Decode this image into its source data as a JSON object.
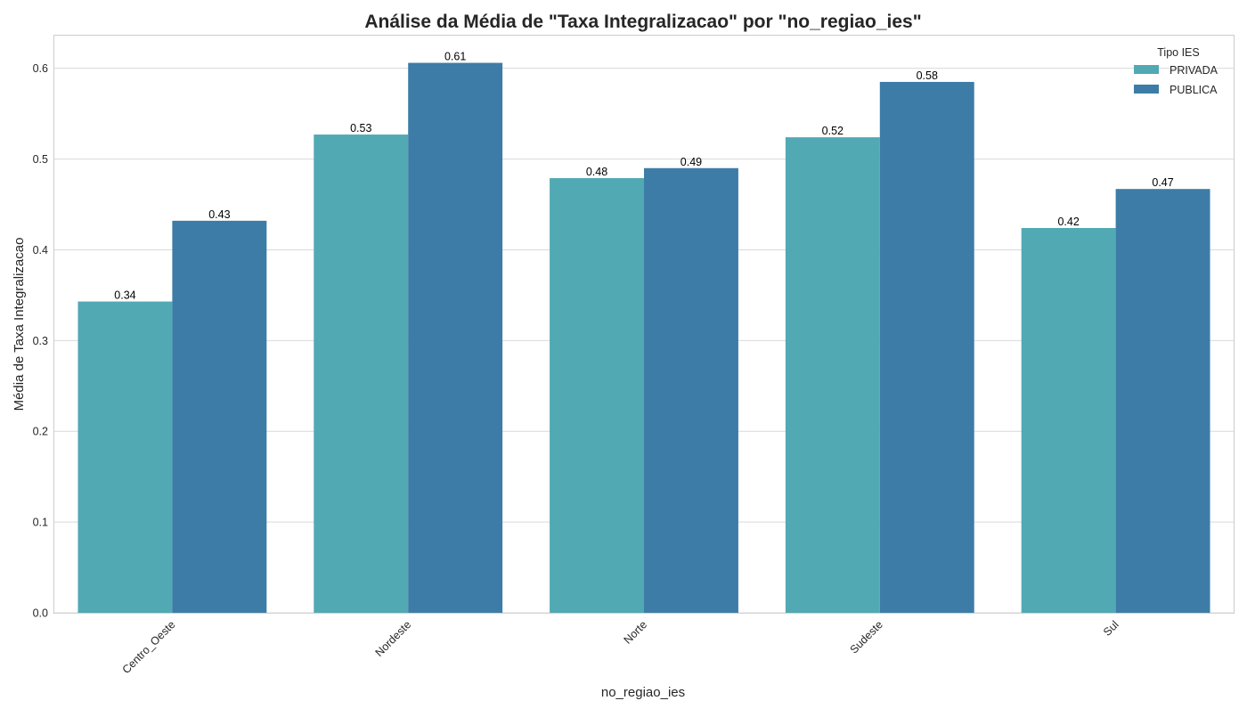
{
  "chart_data": {
    "type": "bar",
    "title": "Análise da Média de \"Taxa Integralizacao\" por \"no_regiao_ies\"",
    "xlabel": "no_regiao_ies",
    "ylabel": "Média de Taxa Integralizacao",
    "categories": [
      "Centro_Oeste",
      "Nordeste",
      "Norte",
      "Sudeste",
      "Sul"
    ],
    "series": [
      {
        "name": "PRIVADA",
        "values": [
          0.343,
          0.527,
          0.479,
          0.524,
          0.424
        ],
        "labels": [
          "0.34",
          "0.53",
          "0.48",
          "0.52",
          "0.42"
        ],
        "color": "#51A9B4"
      },
      {
        "name": "PUBLICA",
        "values": [
          0.432,
          0.606,
          0.49,
          0.585,
          0.467
        ],
        "labels": [
          "0.43",
          "0.61",
          "0.49",
          "0.58",
          "0.47"
        ],
        "color": "#3D7CA7"
      }
    ],
    "ylim": [
      0,
      0.636
    ],
    "yticks": [
      "0.0",
      "0.1",
      "0.2",
      "0.3",
      "0.4",
      "0.5",
      "0.6"
    ],
    "grid": true,
    "legend": {
      "title": "Tipo IES",
      "placement": "top-right"
    }
  }
}
